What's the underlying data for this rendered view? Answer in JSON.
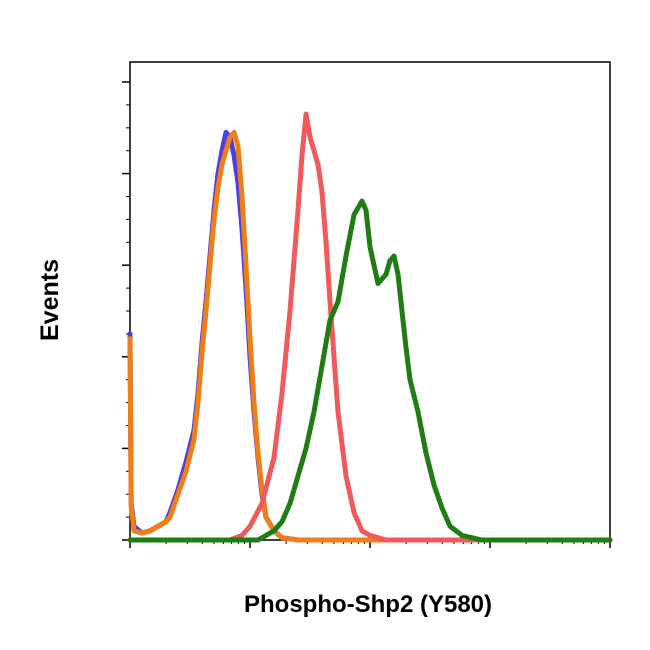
{
  "chart_data": {
    "type": "line",
    "xlabel": "Phospho-Shp2 (Y580)",
    "ylabel": "Events",
    "x_scale": "log",
    "x_decades": 4,
    "grid": false,
    "legend": "none",
    "ylim": [
      0,
      100
    ],
    "series": [
      {
        "color": "#4b3fe0",
        "points": [
          [
            0.0,
            45
          ],
          [
            0.03,
            8
          ],
          [
            0.1,
            3
          ],
          [
            0.3,
            1.5
          ],
          [
            0.5,
            2
          ],
          [
            0.7,
            3
          ],
          [
            0.9,
            4
          ],
          [
            1.0,
            6
          ],
          [
            1.2,
            11
          ],
          [
            1.4,
            17
          ],
          [
            1.6,
            24
          ],
          [
            1.7,
            32
          ],
          [
            1.8,
            43
          ],
          [
            1.9,
            52
          ],
          [
            2.0,
            62
          ],
          [
            2.1,
            72
          ],
          [
            2.2,
            80
          ],
          [
            2.3,
            85
          ],
          [
            2.4,
            89
          ],
          [
            2.5,
            88
          ],
          [
            2.6,
            84
          ],
          [
            2.7,
            78
          ],
          [
            2.8,
            68
          ],
          [
            2.9,
            55
          ],
          [
            3.0,
            40
          ],
          [
            3.1,
            28
          ],
          [
            3.2,
            18
          ],
          [
            3.3,
            10
          ],
          [
            3.4,
            5
          ],
          [
            3.6,
            2
          ],
          [
            3.8,
            0.5
          ],
          [
            4.2,
            0
          ],
          [
            12,
            0
          ]
        ]
      },
      {
        "color": "#f07d16",
        "points": [
          [
            0.0,
            44
          ],
          [
            0.03,
            7
          ],
          [
            0.1,
            2
          ],
          [
            0.3,
            1.5
          ],
          [
            0.5,
            2
          ],
          [
            0.7,
            3
          ],
          [
            0.9,
            4
          ],
          [
            1.0,
            5
          ],
          [
            1.2,
            10
          ],
          [
            1.4,
            15
          ],
          [
            1.6,
            22
          ],
          [
            1.7,
            30
          ],
          [
            1.8,
            41
          ],
          [
            1.9,
            50
          ],
          [
            2.0,
            60
          ],
          [
            2.1,
            70
          ],
          [
            2.2,
            77
          ],
          [
            2.3,
            82
          ],
          [
            2.4,
            85
          ],
          [
            2.5,
            88
          ],
          [
            2.6,
            89
          ],
          [
            2.7,
            86
          ],
          [
            2.8,
            75
          ],
          [
            2.9,
            60
          ],
          [
            3.0,
            44
          ],
          [
            3.1,
            30
          ],
          [
            3.2,
            19
          ],
          [
            3.3,
            11
          ],
          [
            3.4,
            5
          ],
          [
            3.6,
            2
          ],
          [
            3.8,
            0.5
          ],
          [
            4.2,
            0
          ],
          [
            12,
            0
          ]
        ]
      },
      {
        "color": "#f05a5a",
        "points": [
          [
            0,
            0
          ],
          [
            2.5,
            0
          ],
          [
            2.8,
            1
          ],
          [
            3.0,
            3
          ],
          [
            3.3,
            8
          ],
          [
            3.6,
            18
          ],
          [
            3.8,
            32
          ],
          [
            4.0,
            50
          ],
          [
            4.2,
            72
          ],
          [
            4.3,
            84
          ],
          [
            4.4,
            93
          ],
          [
            4.5,
            88
          ],
          [
            4.6,
            85
          ],
          [
            4.7,
            82
          ],
          [
            4.8,
            76
          ],
          [
            4.9,
            65
          ],
          [
            5.0,
            52
          ],
          [
            5.1,
            40
          ],
          [
            5.2,
            28
          ],
          [
            5.4,
            14
          ],
          [
            5.6,
            6
          ],
          [
            5.8,
            2
          ],
          [
            6.0,
            1
          ],
          [
            6.4,
            0
          ],
          [
            12,
            0
          ]
        ]
      },
      {
        "color": "#1f7d13",
        "points": [
          [
            0,
            0
          ],
          [
            3.2,
            0
          ],
          [
            3.4,
            1
          ],
          [
            3.6,
            2
          ],
          [
            3.8,
            4
          ],
          [
            4.0,
            8
          ],
          [
            4.2,
            14
          ],
          [
            4.4,
            20
          ],
          [
            4.6,
            28
          ],
          [
            4.8,
            38
          ],
          [
            5.0,
            48
          ],
          [
            5.2,
            52
          ],
          [
            5.4,
            62
          ],
          [
            5.6,
            71
          ],
          [
            5.8,
            74
          ],
          [
            5.9,
            72
          ],
          [
            6.0,
            64
          ],
          [
            6.2,
            56
          ],
          [
            6.4,
            58
          ],
          [
            6.5,
            61
          ],
          [
            6.6,
            62
          ],
          [
            6.7,
            58
          ],
          [
            6.8,
            50
          ],
          [
            6.9,
            42
          ],
          [
            7.0,
            35
          ],
          [
            7.2,
            28
          ],
          [
            7.4,
            19
          ],
          [
            7.6,
            12
          ],
          [
            7.8,
            7
          ],
          [
            8.0,
            3
          ],
          [
            8.3,
            1
          ],
          [
            8.8,
            0
          ],
          [
            12,
            0
          ]
        ]
      }
    ]
  }
}
